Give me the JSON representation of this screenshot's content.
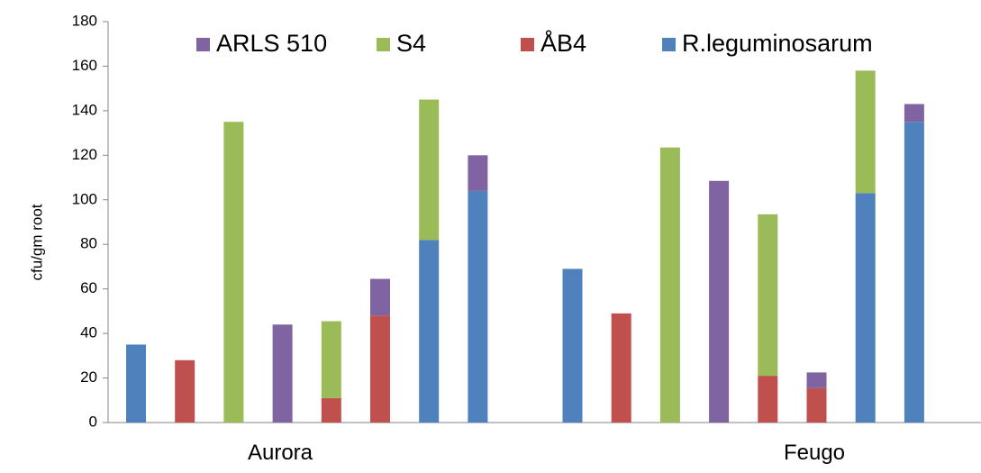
{
  "chart_data": {
    "type": "bar",
    "stacked": true,
    "title": "",
    "xlabel": "",
    "ylabel": "cfu/gm root",
    "ylim": [
      0,
      180
    ],
    "yticks": [
      0,
      20,
      40,
      60,
      80,
      100,
      120,
      140,
      160,
      180
    ],
    "grid": false,
    "legend_position": "top",
    "groups": [
      "Aurora",
      "Feugo"
    ],
    "series": [
      {
        "name": "R.leguminosarum",
        "color": "#4F81BD"
      },
      {
        "name": "ÅB4",
        "color": "#C0504D"
      },
      {
        "name": "S4",
        "color": "#9BBB59"
      },
      {
        "name": "ARLS 510",
        "color": "#8064A2"
      }
    ],
    "legend_order": [
      "ARLS 510",
      "S4",
      "ÅB4",
      "R.leguminosarum"
    ],
    "bars": [
      {
        "group": "Aurora",
        "values": {
          "R.leguminosarum": 35,
          "ÅB4": 0,
          "S4": 0,
          "ARLS 510": 0
        }
      },
      {
        "group": "Aurora",
        "values": {
          "R.leguminosarum": 0,
          "ÅB4": 28,
          "S4": 0,
          "ARLS 510": 0
        }
      },
      {
        "group": "Aurora",
        "values": {
          "R.leguminosarum": 0,
          "ÅB4": 0,
          "S4": 135,
          "ARLS 510": 0
        }
      },
      {
        "group": "Aurora",
        "values": {
          "R.leguminosarum": 0,
          "ÅB4": 0,
          "S4": 0,
          "ARLS 510": 44
        }
      },
      {
        "group": "Aurora",
        "values": {
          "R.leguminosarum": 0,
          "ÅB4": 11,
          "S4": 34.5,
          "ARLS 510": 0
        }
      },
      {
        "group": "Aurora",
        "values": {
          "R.leguminosarum": 0,
          "ÅB4": 48,
          "S4": 0,
          "ARLS 510": 16.5
        }
      },
      {
        "group": "Aurora",
        "values": {
          "R.leguminosarum": 82,
          "ÅB4": 0,
          "S4": 63,
          "ARLS 510": 0
        }
      },
      {
        "group": "Aurora",
        "values": {
          "R.leguminosarum": 104,
          "ÅB4": 0,
          "S4": 0,
          "ARLS 510": 16
        }
      },
      {
        "group": "Feugo",
        "values": {
          "R.leguminosarum": 69,
          "ÅB4": 0,
          "S4": 0,
          "ARLS 510": 0
        }
      },
      {
        "group": "Feugo",
        "values": {
          "R.leguminosarum": 0,
          "ÅB4": 49,
          "S4": 0,
          "ARLS 510": 0
        }
      },
      {
        "group": "Feugo",
        "values": {
          "R.leguminosarum": 0,
          "ÅB4": 0,
          "S4": 123.5,
          "ARLS 510": 0
        }
      },
      {
        "group": "Feugo",
        "values": {
          "R.leguminosarum": 0,
          "ÅB4": 0,
          "S4": 0,
          "ARLS 510": 108.5
        }
      },
      {
        "group": "Feugo",
        "values": {
          "R.leguminosarum": 0,
          "ÅB4": 21,
          "S4": 72.5,
          "ARLS 510": 0
        }
      },
      {
        "group": "Feugo",
        "values": {
          "R.leguminosarum": 0,
          "ÅB4": 15.5,
          "S4": 0,
          "ARLS 510": 7
        }
      },
      {
        "group": "Feugo",
        "values": {
          "R.leguminosarum": 103,
          "ÅB4": 0,
          "S4": 55,
          "ARLS 510": 0
        }
      },
      {
        "group": "Feugo",
        "values": {
          "R.leguminosarum": 135,
          "ÅB4": 0,
          "S4": 0,
          "ARLS 510": 8
        }
      }
    ]
  }
}
